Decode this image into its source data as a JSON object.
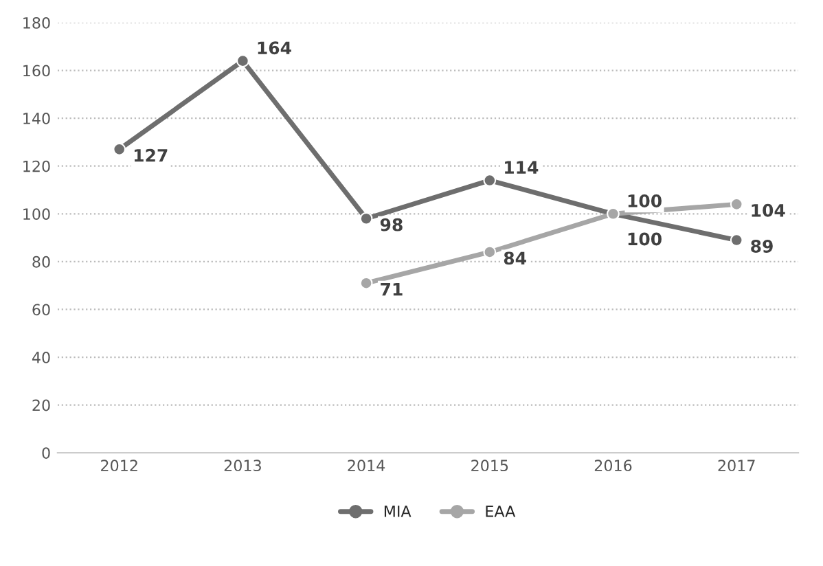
{
  "chart_data": {
    "type": "line",
    "categories": [
      "2012",
      "2013",
      "2014",
      "2015",
      "2016",
      "2017"
    ],
    "series": [
      {
        "name": "MIA",
        "color": "#6e6e6e",
        "values": [
          127,
          164,
          98,
          114,
          100,
          89
        ]
      },
      {
        "name": "EAA",
        "color": "#a6a6a6",
        "values": [
          null,
          null,
          71,
          84,
          100,
          104
        ]
      }
    ],
    "ylim": [
      0,
      180
    ],
    "yticks": [
      0,
      20,
      40,
      60,
      80,
      100,
      120,
      140,
      160,
      180
    ],
    "grid": "y",
    "legend": "bottom",
    "marker": "circle",
    "line_style": "solid",
    "data_labels": true
  }
}
